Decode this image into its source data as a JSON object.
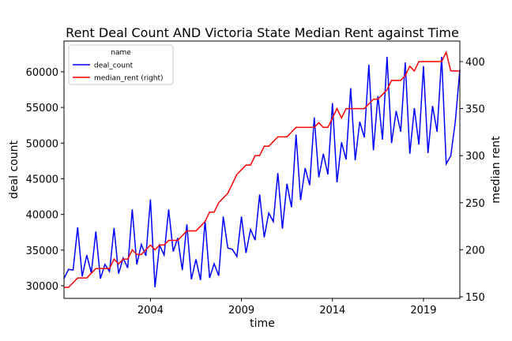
{
  "chart_data": {
    "type": "line",
    "title": "Rent Deal Count AND Victoria State Median Rent against Time",
    "x_label": "time",
    "y_label": "deal count",
    "y2_label": "median rent",
    "legend_title": "name",
    "legend": "upper left",
    "x": [
      1999.25,
      1999.5,
      1999.75,
      2000,
      2000.25,
      2000.5,
      2000.75,
      2001,
      2001.25,
      2001.5,
      2001.75,
      2002,
      2002.25,
      2002.5,
      2002.75,
      2003,
      2003.25,
      2003.5,
      2003.75,
      2004,
      2004.25,
      2004.5,
      2004.75,
      2005,
      2005.25,
      2005.5,
      2005.75,
      2006,
      2006.25,
      2006.5,
      2006.75,
      2007,
      2007.25,
      2007.5,
      2007.75,
      2008,
      2008.25,
      2008.5,
      2008.75,
      2009,
      2009.25,
      2009.5,
      2009.75,
      2010,
      2010.25,
      2010.5,
      2010.75,
      2011,
      2011.25,
      2011.5,
      2011.75,
      2012,
      2012.25,
      2012.5,
      2012.75,
      2013,
      2013.25,
      2013.5,
      2013.75,
      2014,
      2014.25,
      2014.5,
      2014.75,
      2015,
      2015.25,
      2015.5,
      2015.75,
      2016,
      2016.25,
      2016.5,
      2016.75,
      2017,
      2017.25,
      2017.5,
      2017.75,
      2018,
      2018.25,
      2018.5,
      2018.75,
      2019,
      2019.25,
      2019.5,
      2019.75,
      2020,
      2020.25,
      2020.5,
      2020.75,
      2021
    ],
    "xlim": [
      1999.25,
      2021
    ],
    "xticks": [
      2004,
      2009,
      2014,
      2019
    ],
    "ylim": [
      28230,
      64310
    ],
    "yticks": [
      30000,
      35000,
      40000,
      45000,
      50000,
      55000,
      60000
    ],
    "y2lim": [
      148.3,
      421.8
    ],
    "y2ticks": [
      150,
      200,
      250,
      300,
      350,
      400
    ],
    "series": [
      {
        "name": "deal_count",
        "color": "#0000ff",
        "values": [
          31000,
          32300,
          32200,
          38200,
          31300,
          34300,
          31800,
          37600,
          31000,
          33000,
          32000,
          38100,
          31700,
          33900,
          32500,
          40700,
          33000,
          35800,
          34200,
          42100,
          29800,
          35700,
          34300,
          40700,
          34800,
          36700,
          32200,
          38600,
          30900,
          33700,
          30800,
          39100,
          31100,
          33100,
          31400,
          39700,
          35300,
          35100,
          34100,
          39700,
          34600,
          37900,
          36400,
          42800,
          36800,
          40200,
          39000,
          45800,
          38000,
          44300,
          41000,
          51200,
          42000,
          46500,
          44100,
          53600,
          45200,
          48500,
          45600,
          55600,
          44500,
          50100,
          47700,
          57700,
          47600,
          53000,
          50800,
          61000,
          49000,
          56600,
          50500,
          62100,
          50000,
          54500,
          51600,
          61300,
          48500,
          54900,
          49800,
          60800,
          48600,
          55200,
          51600,
          62100,
          47100,
          48200,
          53000,
          60300
        ]
      },
      {
        "name": "median_rent (right)",
        "color": "#ff0000",
        "axis": "y2",
        "values": [
          160,
          160,
          165,
          170,
          170,
          170,
          175,
          180,
          180,
          180,
          180,
          190,
          185,
          190,
          190,
          200,
          195,
          195,
          200,
          205,
          200,
          205,
          205,
          210,
          210,
          210,
          215,
          220,
          220,
          220,
          225,
          230,
          240,
          240,
          250,
          255,
          260,
          270,
          280,
          285,
          290,
          290,
          300,
          300,
          310,
          310,
          315,
          320,
          320,
          320,
          325,
          330,
          330,
          330,
          330,
          330,
          335,
          330,
          330,
          340,
          350,
          340,
          350,
          350,
          350,
          350,
          350,
          355,
          360,
          360,
          365,
          370,
          380,
          380,
          380,
          385,
          395,
          390,
          400,
          400,
          400,
          400,
          400,
          400,
          410,
          390,
          390,
          390
        ]
      }
    ]
  }
}
